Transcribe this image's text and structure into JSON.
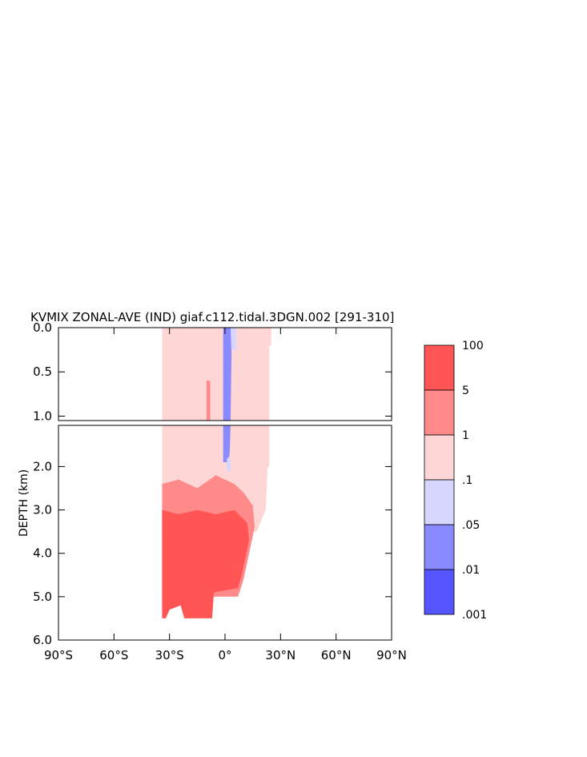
{
  "chart_data": {
    "type": "heatmap",
    "title": "KVMIX ZONAL-AVE (IND) giaf.c112.tidal.3DGN.002 [291-310]",
    "xlabel": "",
    "ylabel": "DEPTH (km)",
    "x_ticks": [
      "90°S",
      "60°S",
      "30°S",
      "0°",
      "30°N",
      "60°N",
      "90°N"
    ],
    "xlim": [
      -90,
      90
    ],
    "panels": [
      {
        "name": "upper",
        "ylim": [
          0.0,
          1.05
        ],
        "y_ticks": [
          "0.0",
          "0.5",
          "1.0"
        ],
        "y_tick_values": [
          0.0,
          0.5,
          1.0
        ]
      },
      {
        "name": "lower",
        "ylim": [
          1.05,
          6.0
        ],
        "y_ticks": [
          "2.0",
          "3.0",
          "4.0",
          "5.0",
          "6.0"
        ],
        "y_tick_values": [
          2.0,
          3.0,
          4.0,
          5.0,
          6.0
        ]
      }
    ],
    "colorbar": {
      "levels": [
        "100",
        "5",
        "1",
        ".1",
        ".05",
        ".01",
        ".001"
      ],
      "colors": [
        "#ff5555",
        "#ff8a8a",
        "#ffd6d6",
        "#d6d6ff",
        "#8a8aff",
        "#5555ff"
      ]
    },
    "regions": [
      {
        "class": 2,
        "lat_range": [
          -34,
          24
        ],
        "depth_range": [
          0.0,
          2.4
        ],
        "note_kvmix": "0.1-1"
      },
      {
        "class": 1,
        "lat_range": [
          -34,
          16
        ],
        "depth_range": [
          2.4,
          3.0
        ],
        "note_kvmix": "1-5"
      },
      {
        "class": 0,
        "lat_range": [
          -34,
          10
        ],
        "depth_range": [
          3.0,
          5.5
        ],
        "note_kvmix": "5-100"
      },
      {
        "class": 4,
        "lat_range": [
          -1,
          3
        ],
        "depth_range": [
          0.0,
          1.9
        ],
        "note_kvmix": "0.01-0.05"
      }
    ]
  }
}
